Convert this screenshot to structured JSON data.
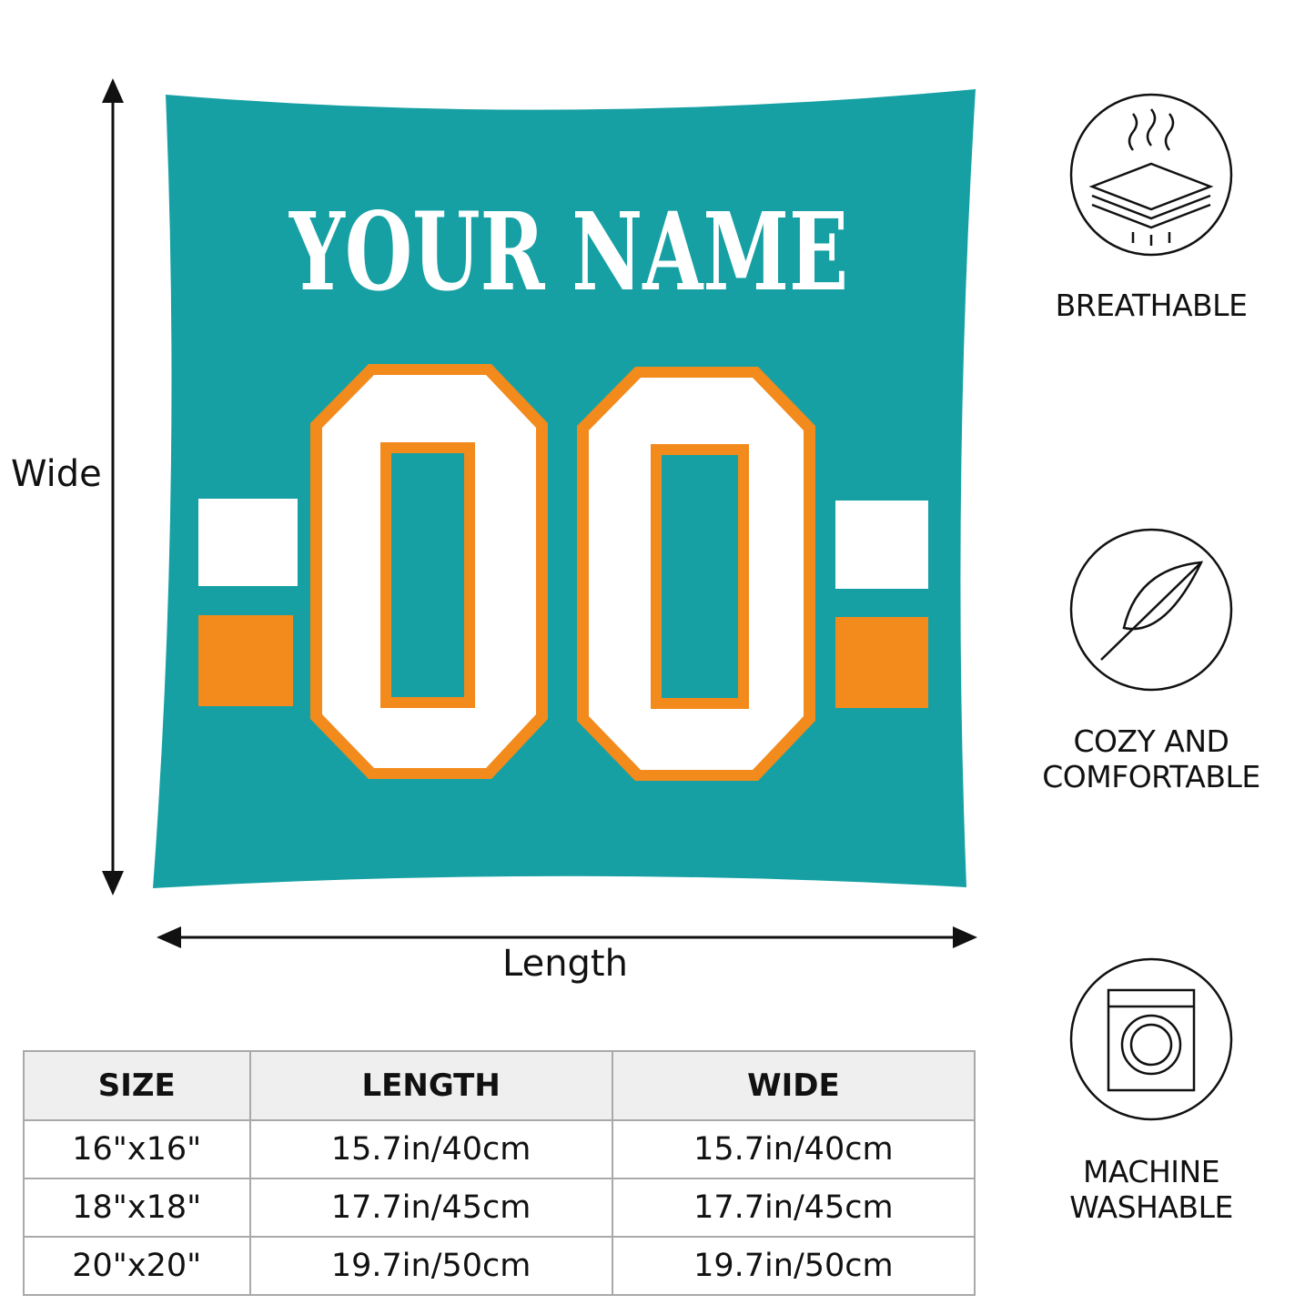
{
  "product": {
    "name_text": "YOUR NAME",
    "number_text": "00",
    "colors": {
      "primary": "#16a0a3",
      "accent": "#f28a1c",
      "trim": "#ffffff"
    }
  },
  "dimensions": {
    "vertical_label": "Wide",
    "horizontal_label": "Length"
  },
  "features": [
    {
      "icon": "breathable-layers-icon",
      "lines": [
        "BREATHABLE"
      ]
    },
    {
      "icon": "feather-icon",
      "lines": [
        "COZY AND",
        "COMFORTABLE"
      ]
    },
    {
      "icon": "washing-machine-icon",
      "lines": [
        "MACHINE",
        "WASHABLE"
      ]
    }
  ],
  "size_table": {
    "headers": [
      "SIZE",
      "LENGTH",
      "WIDE"
    ],
    "rows": [
      [
        "16\"x16\"",
        "15.7in/40cm",
        "15.7in/40cm"
      ],
      [
        "18\"x18\"",
        "17.7in/45cm",
        "17.7in/45cm"
      ],
      [
        "20\"x20\"",
        "19.7in/50cm",
        "19.7in/50cm"
      ]
    ]
  }
}
